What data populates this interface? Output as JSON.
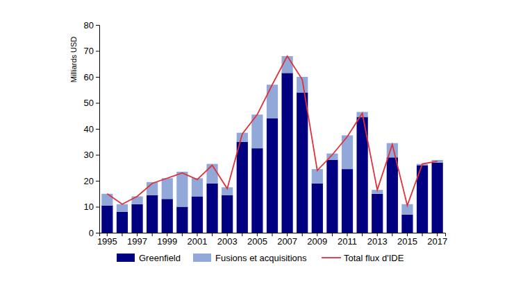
{
  "chart_data": {
    "type": "bar",
    "stacked": true,
    "legend": "bottom",
    "grid": false,
    "y_label": "Milliards USD",
    "categories": [
      "1995",
      null,
      "1997",
      null,
      "1999",
      null,
      "2001",
      null,
      "2003",
      null,
      "2005",
      null,
      "2007",
      null,
      "2009",
      null,
      "2011",
      null,
      "2013",
      null,
      "2015",
      null,
      "2017"
    ],
    "ylim": [
      0,
      80
    ],
    "yticks": [
      0,
      10,
      20,
      30,
      40,
      50,
      60,
      70,
      80
    ],
    "series": [
      {
        "name": "Greenfield",
        "type": "bar",
        "color": "#000080",
        "values": [
          10.5,
          8,
          11,
          14.5,
          13,
          10,
          14,
          19,
          14.5,
          35,
          32.5,
          44,
          61.5,
          54,
          19,
          28,
          24.5,
          44.5,
          15,
          29,
          7,
          26,
          27
        ]
      },
      {
        "name": "Fusions et acquisitions",
        "type": "bar",
        "color": "#91a8d9",
        "values": [
          4.5,
          3,
          3,
          5,
          8,
          13.5,
          7,
          7.5,
          3,
          3.5,
          13,
          13,
          6.5,
          6,
          5.5,
          2.5,
          13,
          2,
          1.5,
          5.5,
          4,
          0.5,
          1
        ]
      },
      {
        "name": "Total flux d'IDE",
        "type": "line",
        "color": "#e0303a",
        "line_style": "solid",
        "values": [
          15,
          11,
          14,
          19,
          21,
          23,
          20.5,
          26,
          17,
          38,
          45.5,
          57,
          68,
          59,
          24,
          30,
          37,
          46,
          16.5,
          34,
          10.5,
          26.5,
          27.5
        ]
      }
    ]
  }
}
